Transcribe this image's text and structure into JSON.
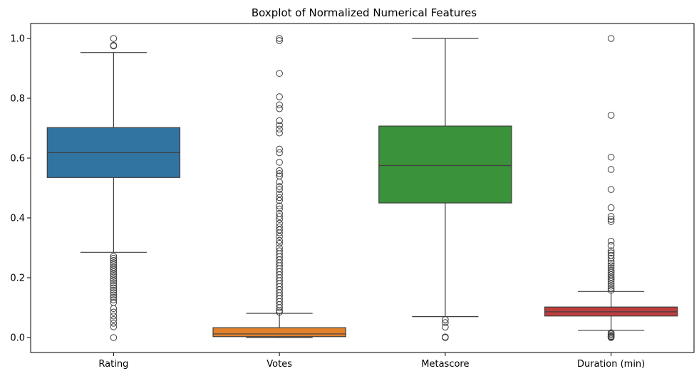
{
  "chart_data": {
    "type": "boxplot",
    "title": "Boxplot of Normalized Numerical Features",
    "xlabel": "",
    "ylabel": "",
    "ylim": [
      -0.05,
      1.05
    ],
    "yticks": [
      "0.0",
      "0.2",
      "0.4",
      "0.6",
      "0.8",
      "1.0"
    ],
    "grid": false,
    "categories": [
      "Rating",
      "Votes",
      "Metascore",
      "Duration (min)"
    ],
    "boxes": [
      {
        "name": "Rating",
        "color": "#3274a1",
        "whisker_low": 0.285,
        "q1": 0.535,
        "median": 0.618,
        "q3": 0.702,
        "whisker_high": 0.953,
        "outliers": [
          1.0,
          0.977,
          0.975,
          0.272,
          0.265,
          0.258,
          0.25,
          0.243,
          0.235,
          0.228,
          0.22,
          0.212,
          0.205,
          0.197,
          0.19,
          0.182,
          0.174,
          0.166,
          0.158,
          0.15,
          0.142,
          0.134,
          0.126,
          0.117,
          0.097,
          0.085,
          0.072,
          0.06,
          0.048,
          0.036,
          0.0
        ]
      },
      {
        "name": "Votes",
        "color": "#e1812c",
        "whisker_low": 0.0,
        "q1": 0.003,
        "median": 0.012,
        "q3": 0.033,
        "whisker_high": 0.081,
        "outliers": [
          1.0,
          0.993,
          0.883,
          0.805,
          0.778,
          0.765,
          0.725,
          0.71,
          0.697,
          0.684,
          0.63,
          0.618,
          0.586,
          0.558,
          0.548,
          0.54,
          0.52,
          0.505,
          0.495,
          0.48,
          0.468,
          0.458,
          0.44,
          0.43,
          0.415,
          0.405,
          0.395,
          0.382,
          0.37,
          0.36,
          0.35,
          0.338,
          0.325,
          0.315,
          0.3,
          0.29,
          0.28,
          0.27,
          0.26,
          0.25,
          0.24,
          0.23,
          0.22,
          0.21,
          0.2,
          0.19,
          0.18,
          0.17,
          0.16,
          0.15,
          0.14,
          0.13,
          0.12,
          0.11,
          0.1,
          0.09,
          0.085
        ]
      },
      {
        "name": "Metascore",
        "color": "#3a923a",
        "whisker_low": 0.07,
        "q1": 0.45,
        "median": 0.575,
        "q3": 0.707,
        "whisker_high": 1.0,
        "outliers": [
          0.06,
          0.05,
          0.035,
          0.002,
          0.0
        ]
      },
      {
        "name": "Duration (min)",
        "color": "#c03d3e",
        "whisker_low": 0.024,
        "q1": 0.072,
        "median": 0.086,
        "q3": 0.102,
        "whisker_high": 0.154,
        "outliers": [
          1.0,
          0.743,
          0.603,
          0.562,
          0.495,
          0.434,
          0.405,
          0.395,
          0.388,
          0.322,
          0.308,
          0.29,
          0.283,
          0.275,
          0.265,
          0.255,
          0.248,
          0.24,
          0.232,
          0.225,
          0.218,
          0.21,
          0.202,
          0.195,
          0.188,
          0.18,
          0.172,
          0.165,
          0.158,
          0.016,
          0.012,
          0.008,
          0.004,
          0.002,
          0.0
        ]
      }
    ]
  }
}
